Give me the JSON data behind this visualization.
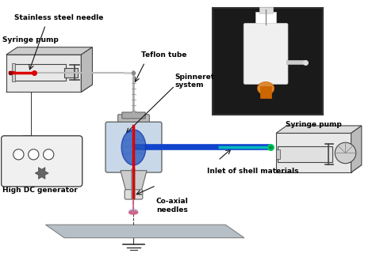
{
  "bg_color": "#ffffff",
  "labels": {
    "syringe_pump_left": "Syringe pump",
    "stainless_needle": "Stainless steel needle",
    "teflon_tube": "Teflon tube",
    "spinneret": "Spinneret\nsystem",
    "dc_generator": "High DC generator",
    "coaxial_needles": "Co-axial\nneedles",
    "syringe_pump_right": "Syringe pump",
    "inlet_shell": "Inlet of shell materials"
  },
  "colors": {
    "needle_red": "#dd0000",
    "tube_blue": "#1144cc",
    "tube_cyan": "#00bbbb",
    "vessel_gray": "#aaaaaa",
    "plate_gray": "#b0b8c0",
    "fiber_pink": "#cc6688",
    "fiber_blue": "#8899cc",
    "wire_dark": "#333333",
    "box_outline": "#444444",
    "arrow": "#111111",
    "label_color": "#000000",
    "pump_face": "#e8e8e8",
    "flask_body": "#c8d8e8",
    "flask_edge": "#666666",
    "blob_blue": "#2255bb",
    "dc_face": "#f0f0f0",
    "photo_bg": "#1a1a1a"
  },
  "font_size": 6.5,
  "font_weight": "bold"
}
